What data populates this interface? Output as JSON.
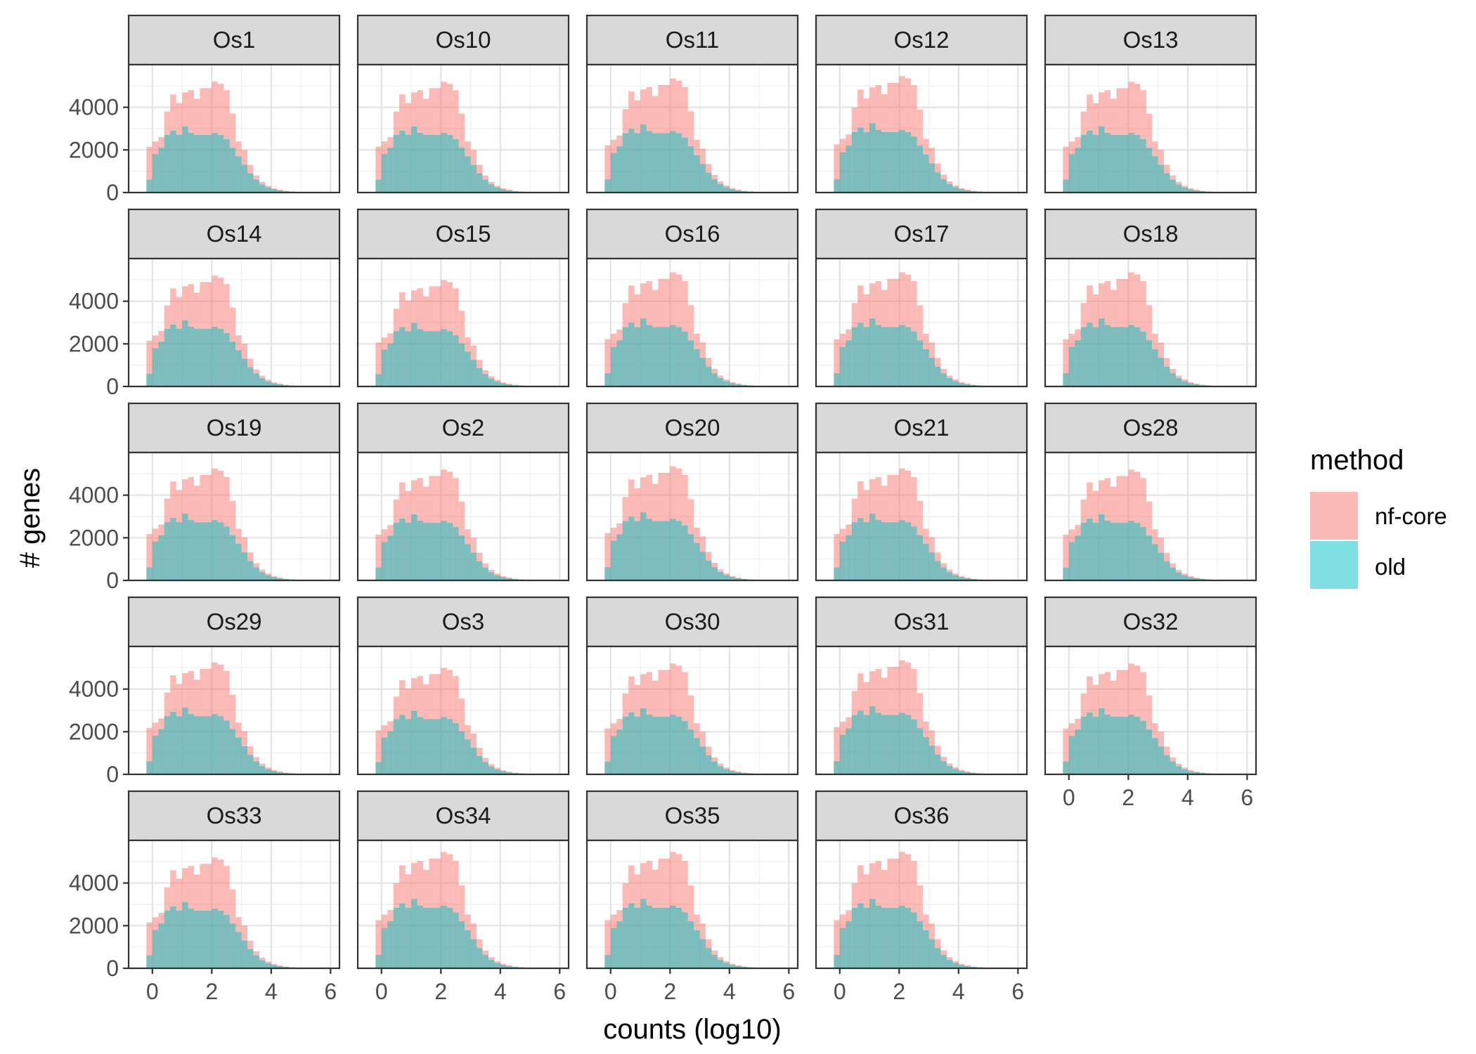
{
  "chart_data": {
    "type": "histogram",
    "xlabel": "counts (log10)",
    "ylabel": "# genes",
    "xlim": [
      -0.8,
      6.3
    ],
    "ylim": [
      0,
      6000
    ],
    "x_ticks": [
      "0",
      "2",
      "4",
      "6"
    ],
    "y_ticks": [
      "0",
      "2000",
      "4000"
    ],
    "grid": true,
    "facet_layout": {
      "columns": 5,
      "rows": 5
    },
    "legend": {
      "title": "method",
      "position": "right",
      "entries": [
        {
          "label": "nf-core",
          "color": "#F8766D"
        },
        {
          "label": "old",
          "color": "#00BFC4"
        }
      ]
    },
    "bin_width": 0.2,
    "bin_centers": [
      -0.1,
      0.1,
      0.3,
      0.5,
      0.7,
      0.9,
      1.1,
      1.3,
      1.5,
      1.7,
      1.9,
      2.1,
      2.3,
      2.5,
      2.7,
      2.9,
      3.1,
      3.3,
      3.5,
      3.7,
      3.9,
      4.1,
      4.3,
      4.5,
      4.7,
      4.9,
      5.1,
      5.3,
      5.5,
      5.7,
      5.9
    ],
    "series_template": {
      "nf-core": [
        2150,
        2400,
        2600,
        3800,
        4600,
        4200,
        4700,
        4800,
        4400,
        4900,
        4900,
        5200,
        5100,
        4800,
        3700,
        2400,
        2000,
        1300,
        800,
        500,
        320,
        200,
        130,
        80,
        50,
        30,
        20,
        12,
        8,
        5,
        3
      ],
      "old": [
        600,
        1800,
        2100,
        2700,
        2900,
        2700,
        3100,
        2800,
        2700,
        2700,
        2700,
        2800,
        2700,
        2500,
        2100,
        1700,
        1300,
        900,
        600,
        380,
        240,
        150,
        100,
        60,
        40,
        25,
        15,
        10,
        6,
        4,
        2
      ]
    },
    "panels": [
      {
        "label": "Os1",
        "scale": 1.0
      },
      {
        "label": "Os10",
        "scale": 1.0
      },
      {
        "label": "Os11",
        "scale": 1.03
      },
      {
        "label": "Os12",
        "scale": 1.05
      },
      {
        "label": "Os13",
        "scale": 1.0
      },
      {
        "label": "Os14",
        "scale": 1.0
      },
      {
        "label": "Os15",
        "scale": 0.96
      },
      {
        "label": "Os16",
        "scale": 1.03
      },
      {
        "label": "Os17",
        "scale": 1.03
      },
      {
        "label": "Os18",
        "scale": 1.03
      },
      {
        "label": "Os19",
        "scale": 1.01
      },
      {
        "label": "Os2",
        "scale": 1.0
      },
      {
        "label": "Os20",
        "scale": 1.03
      },
      {
        "label": "Os21",
        "scale": 1.01
      },
      {
        "label": "Os28",
        "scale": 1.0
      },
      {
        "label": "Os29",
        "scale": 1.01
      },
      {
        "label": "Os3",
        "scale": 0.96
      },
      {
        "label": "Os30",
        "scale": 1.0
      },
      {
        "label": "Os31",
        "scale": 1.03
      },
      {
        "label": "Os32",
        "scale": 1.0
      },
      {
        "label": "Os33",
        "scale": 1.0
      },
      {
        "label": "Os34",
        "scale": 1.05
      },
      {
        "label": "Os35",
        "scale": 1.05
      },
      {
        "label": "Os36",
        "scale": 1.05
      }
    ]
  }
}
